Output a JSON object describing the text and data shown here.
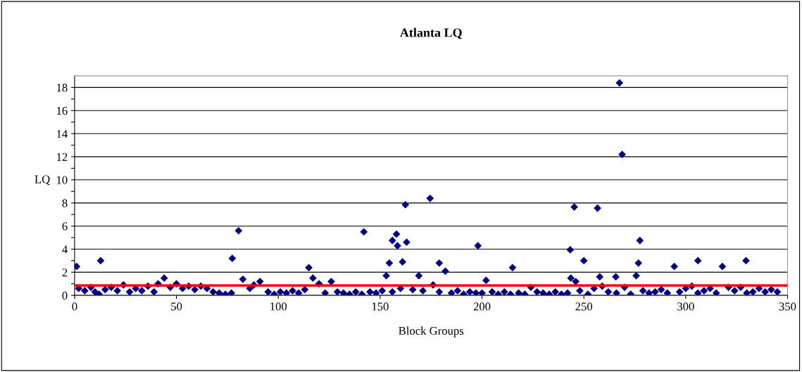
{
  "chart_data": {
    "type": "scatter",
    "title": "Atlanta LQ",
    "xlabel": "Block Groups",
    "ylabel": "LQ",
    "xlim": [
      0,
      350
    ],
    "xticks": [
      0,
      50,
      100,
      150,
      200,
      250,
      300,
      350
    ],
    "ylim": [
      0,
      19
    ],
    "yticks": [
      0,
      {
        "value": 1,
        "label": null
      },
      2,
      {
        "value": 3,
        "label": null
      },
      4,
      {
        "value": 5,
        "label": null
      },
      6,
      {
        "value": 7,
        "label": null
      },
      8,
      {
        "value": 9,
        "label": null
      },
      10,
      {
        "value": 11,
        "label": null
      },
      12,
      {
        "value": 13,
        "label": null
      },
      14,
      {
        "value": 15,
        "label": null
      },
      16,
      {
        "value": 17,
        "label": null
      },
      18
    ],
    "grid": "y",
    "marker": "diamond",
    "legend": false,
    "ref_lines": [
      {
        "axis": "y",
        "value": 0.85,
        "color": "#ff0000",
        "line_style": "solid"
      }
    ],
    "series": [
      {
        "color": "#000080",
        "x": [
          1,
          12.8,
          77.4,
          80.5,
          82.6,
          115,
          117,
          44,
          91,
          142,
          162.4,
          174.5,
          158,
          156,
          158.5,
          163,
          154.5,
          161,
          153,
          179,
          182,
          169,
          198,
          202,
          215,
          267.5,
          268.8,
          245.3,
          256.7,
          243.3,
          250,
          277.5,
          276.8,
          275.7,
          265.7,
          257.8,
          243.6,
          294.4,
          306,
          318,
          329.6,
          2,
          5,
          8,
          10,
          12,
          15,
          18,
          21,
          24,
          27,
          30,
          33,
          36,
          39,
          41,
          47,
          50,
          53,
          56,
          59,
          62,
          65,
          68,
          71,
          74,
          77,
          86,
          88,
          95,
          98,
          101,
          104,
          107,
          110,
          113,
          120,
          123,
          126,
          129,
          132,
          135,
          138,
          141,
          145,
          148,
          151,
          156,
          160,
          166,
          171,
          176,
          179,
          185,
          188,
          191,
          194,
          197,
          200,
          205,
          208,
          211,
          214,
          218,
          221,
          224,
          227,
          230,
          233,
          236,
          239,
          242,
          246,
          248,
          252,
          255,
          259,
          262,
          266,
          270,
          273,
          279,
          282,
          285,
          288,
          291,
          297,
          300,
          303,
          306,
          309,
          312,
          315,
          321,
          324,
          327,
          330,
          333,
          336,
          339,
          342,
          345
        ],
        "values": [
          2.5,
          3.0,
          3.2,
          5.6,
          1.4,
          2.4,
          1.5,
          1.5,
          1.2,
          5.5,
          7.85,
          8.4,
          5.3,
          4.75,
          4.3,
          4.6,
          2.8,
          2.9,
          1.7,
          2.8,
          2.1,
          1.7,
          4.3,
          1.3,
          2.4,
          18.4,
          12.2,
          7.65,
          7.55,
          3.95,
          3.0,
          4.75,
          2.8,
          1.7,
          1.6,
          1.6,
          1.5,
          2.5,
          3.0,
          2.5,
          3.0,
          0.6,
          0.4,
          0.7,
          0.3,
          0.1,
          0.5,
          0.7,
          0.4,
          0.9,
          0.3,
          0.6,
          0.4,
          0.8,
          0.3,
          1.0,
          0.7,
          1.0,
          0.6,
          0.8,
          0.5,
          0.8,
          0.6,
          0.3,
          0.2,
          0.1,
          0.2,
          0.6,
          0.9,
          0.3,
          0.1,
          0.3,
          0.2,
          0.4,
          0.2,
          0.5,
          1.0,
          0.2,
          1.2,
          0.3,
          0.2,
          0.1,
          0.3,
          0.1,
          0.3,
          0.2,
          0.4,
          0.3,
          0.6,
          0.5,
          0.4,
          0.9,
          0.3,
          0.2,
          0.4,
          0.1,
          0.3,
          0.2,
          0.2,
          0.3,
          0.1,
          0.3,
          0.1,
          0.2,
          0.1,
          0.7,
          0.3,
          0.2,
          0.1,
          0.3,
          0.1,
          0.2,
          1.2,
          0.4,
          0.1,
          0.6,
          0.8,
          0.3,
          0.2,
          0.7,
          0.1,
          0.4,
          0.2,
          0.3,
          0.5,
          0.2,
          0.3,
          0.6,
          0.8,
          0.2,
          0.4,
          0.6,
          0.2,
          0.7,
          0.4,
          0.7,
          0.2,
          0.3,
          0.6,
          0.3,
          0.5,
          0.3
        ]
      }
    ]
  }
}
